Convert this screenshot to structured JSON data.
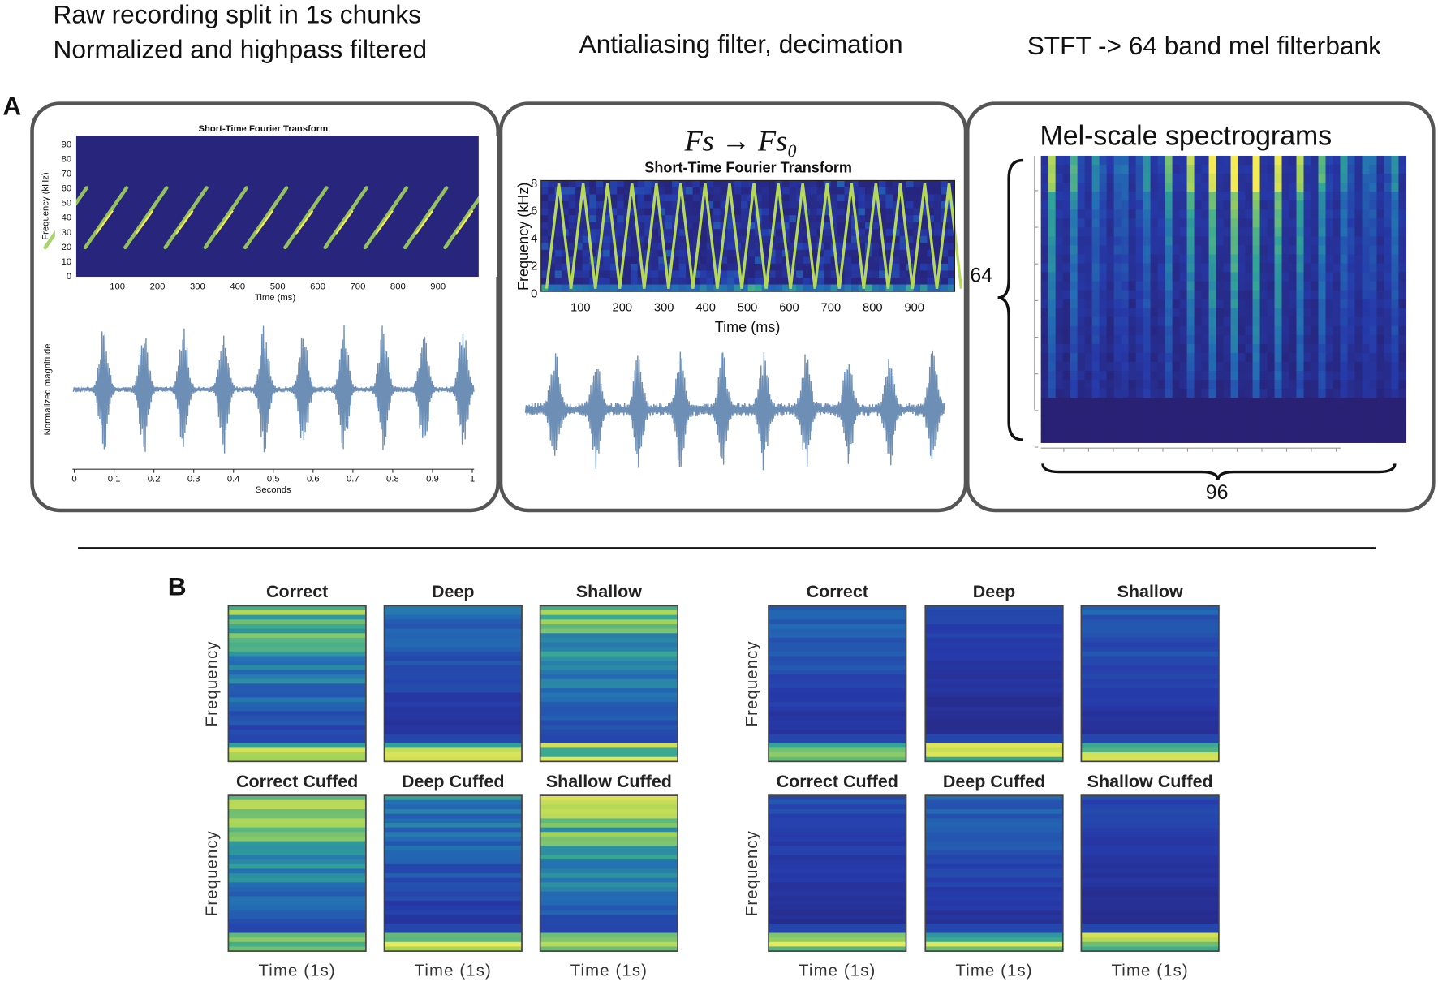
{
  "panel_a": {
    "label": "A",
    "raw": {
      "caption": [
        "Raw recording split in 1s chunks",
        "Normalized and highpass filtered"
      ],
      "stft_title": "Short-Time Fourier Transform",
      "y_label": "Frequency (kHz)",
      "y_ticks": [
        0,
        10,
        20,
        30,
        40,
        50,
        60,
        70,
        80,
        90
      ],
      "x_ticks": [
        100,
        200,
        300,
        400,
        500,
        600,
        700,
        800,
        900
      ],
      "x_label": "Time (ms)",
      "wave_y_label": "Normalized magnitude",
      "wave_x_ticks": [
        0,
        0.1,
        0.2,
        0.3,
        0.4,
        0.5,
        0.6,
        0.7,
        0.8,
        0.9,
        1
      ],
      "wave_x_label": "Seconds"
    },
    "decimated": {
      "caption": "Antialiasing filter, decimation",
      "formula": "Fs → Fs₀",
      "stft_title": "Short-Time Fourier Transform",
      "y_label": "Frequency (kHz)",
      "y_ticks": [
        0,
        2,
        4,
        6,
        8
      ],
      "x_ticks": [
        100,
        200,
        300,
        400,
        500,
        600,
        700,
        800,
        900
      ],
      "x_label": "Time (ms)"
    },
    "mel": {
      "caption": "STFT -> 64 band mel filterbank",
      "title": "Mel-scale spectrograms",
      "height_label": "64",
      "width_label": "96"
    }
  },
  "panel_b": {
    "label": "B",
    "y_label": "Frequency",
    "x_label": "Time (1s)",
    "groups": [
      {
        "titles": [
          "Correct",
          "Deep",
          "Shallow",
          "Correct Cuffed",
          "Deep Cuffed",
          "Shallow Cuffed"
        ]
      },
      {
        "titles": [
          "Correct",
          "Deep",
          "Shallow",
          "Correct Cuffed",
          "Deep Cuffed",
          "Shallow Cuffed"
        ]
      }
    ]
  }
}
